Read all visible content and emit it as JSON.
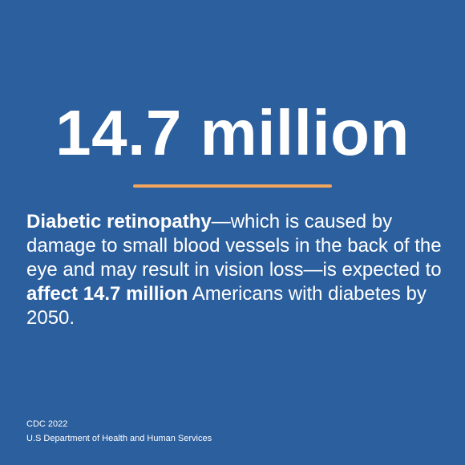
{
  "headline": "14.7 million",
  "colors": {
    "background": "#2c5f9e",
    "accent": "#f2a55d",
    "text": "#ffffff"
  },
  "body": {
    "term": "Diabetic retinopathy",
    "part1": "—which is caused by damage to small blood vessels in the back of the eye and may result in vision loss—is expected to ",
    "emphasis": "affect 14.7 million",
    "part2": " Americans with diabetes by 2050."
  },
  "footer": {
    "source": "CDC 2022",
    "org": "U.S Department of Health and Human Services"
  }
}
